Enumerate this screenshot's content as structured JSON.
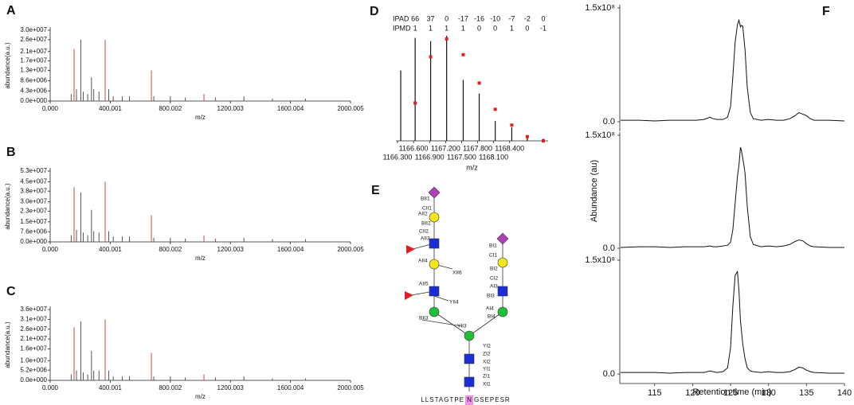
{
  "chart_data": [
    {
      "type": "spectrum",
      "panel_label": "A",
      "y_label": "abundance(a.u.)",
      "x_label": "m/z",
      "xlim": [
        0,
        2000.005
      ],
      "xticks": [
        {
          "value": 0,
          "label": "0.000"
        },
        {
          "value": 400.001,
          "label": "400.001"
        },
        {
          "value": 800.002,
          "label": "800.002"
        },
        {
          "value": 1200.003,
          "label": "1200.003"
        },
        {
          "value": 1600.004,
          "label": "1600.004"
        },
        {
          "value": 2000.005,
          "label": "2000.005"
        }
      ],
      "ylim": [
        0,
        30000000
      ],
      "yticks": [
        {
          "value": 0,
          "label": "0.0e+000"
        },
        {
          "value": 4300000,
          "label": "4.3e+006"
        },
        {
          "value": 8600000,
          "label": "8.6e+006"
        },
        {
          "value": 13000000,
          "label": "1.3e+007"
        },
        {
          "value": 17000000,
          "label": "1.7e+007"
        },
        {
          "value": 21000000,
          "label": "2.1e+007"
        },
        {
          "value": 26000000,
          "label": "2.6e+007"
        },
        {
          "value": 30000000,
          "label": "3.0e+007"
        }
      ],
      "x": [
        140,
        159,
        175,
        204,
        220,
        250,
        275,
        290,
        325,
        366,
        390,
        420,
        480,
        528,
        674,
        690,
        800,
        900,
        1024,
        1100,
        1290,
        1480,
        1700
      ],
      "values": [
        3000000,
        22000000,
        5000000,
        26000000,
        4000000,
        3000000,
        10000000,
        5000000,
        4000000,
        26000000,
        5000000,
        2000000,
        2000000,
        2000000,
        13000000,
        2000000,
        2000000,
        1500000,
        3000000,
        1500000,
        2000000,
        1000000,
        1000000
      ],
      "colors": [
        "#555",
        "#c84a4a",
        "#555",
        "#555",
        "#555",
        "#555",
        "#555",
        "#555",
        "#555",
        "#c84a4a",
        "#555",
        "#555",
        "#555",
        "#555",
        "#c84a4a",
        "#555",
        "#555",
        "#555",
        "#c84a4a",
        "#555",
        "#555",
        "#555",
        "#555"
      ]
    },
    {
      "type": "spectrum",
      "panel_label": "B",
      "y_label": "abundance(a.u.)",
      "x_label": "m/z",
      "xlim": [
        0,
        2000.005
      ],
      "xticks": [
        {
          "value": 0,
          "label": "0.000"
        },
        {
          "value": 400.001,
          "label": "400.001"
        },
        {
          "value": 800.002,
          "label": "800.002"
        },
        {
          "value": 1200.003,
          "label": "1200.003"
        },
        {
          "value": 1600.004,
          "label": "1600.004"
        },
        {
          "value": 2000.005,
          "label": "2000.005"
        }
      ],
      "ylim": [
        0,
        53000000
      ],
      "yticks": [
        {
          "value": 0,
          "label": "0.0e+000"
        },
        {
          "value": 7600000,
          "label": "7.6e+006"
        },
        {
          "value": 15000000,
          "label": "1.5e+007"
        },
        {
          "value": 23000000,
          "label": "2.3e+007"
        },
        {
          "value": 30000000,
          "label": "3.0e+007"
        },
        {
          "value": 38000000,
          "label": "3.8e+007"
        },
        {
          "value": 45000000,
          "label": "4.5e+007"
        },
        {
          "value": 53000000,
          "label": "5.3e+007"
        }
      ],
      "x": [
        140,
        159,
        175,
        204,
        220,
        250,
        275,
        290,
        325,
        366,
        390,
        420,
        480,
        528,
        674,
        690,
        800,
        900,
        1024,
        1100,
        1290,
        1480,
        1700
      ],
      "values": [
        5000000,
        41000000,
        9000000,
        37000000,
        7000000,
        5000000,
        24000000,
        8000000,
        7000000,
        45000000,
        8000000,
        4000000,
        4000000,
        4000000,
        20000000,
        3000000,
        3000000,
        2500000,
        5000000,
        2500000,
        3000000,
        2000000,
        2000000
      ],
      "colors": [
        "#555",
        "#c84a4a",
        "#555",
        "#555",
        "#555",
        "#555",
        "#555",
        "#555",
        "#555",
        "#c84a4a",
        "#555",
        "#555",
        "#555",
        "#555",
        "#c84a4a",
        "#555",
        "#555",
        "#555",
        "#c84a4a",
        "#555",
        "#555",
        "#555",
        "#555"
      ]
    },
    {
      "type": "spectrum",
      "panel_label": "C",
      "y_label": "abundance(a.u.)",
      "x_label": "m/z",
      "xlim": [
        0,
        2000.005
      ],
      "xticks": [
        {
          "value": 0,
          "label": "0.000"
        },
        {
          "value": 400.001,
          "label": "400.001"
        },
        {
          "value": 800.002,
          "label": "800.002"
        },
        {
          "value": 1200.003,
          "label": "1200.003"
        },
        {
          "value": 1600.004,
          "label": "1600.004"
        },
        {
          "value": 2000.005,
          "label": "2000.005"
        }
      ],
      "ylim": [
        0,
        36000000
      ],
      "yticks": [
        {
          "value": 0,
          "label": "0.0e+000"
        },
        {
          "value": 5200000,
          "label": "5.2e+006"
        },
        {
          "value": 10000000,
          "label": "1.0e+007"
        },
        {
          "value": 16000000,
          "label": "1.6e+007"
        },
        {
          "value": 21000000,
          "label": "2.1e+007"
        },
        {
          "value": 26000000,
          "label": "2.6e+007"
        },
        {
          "value": 31000000,
          "label": "3.1e+007"
        },
        {
          "value": 36000000,
          "label": "3.6e+007"
        }
      ],
      "x": [
        140,
        159,
        175,
        204,
        220,
        250,
        275,
        290,
        325,
        366,
        390,
        420,
        480,
        528,
        674,
        690,
        800,
        900,
        1024,
        1100,
        1290,
        1480,
        1700
      ],
      "values": [
        3000000,
        27000000,
        5000000,
        30000000,
        4000000,
        3000000,
        15000000,
        5000000,
        5000000,
        31000000,
        5000000,
        2000000,
        2000000,
        2000000,
        14000000,
        2000000,
        2000000,
        1500000,
        3000000,
        1500000,
        2000000,
        1000000,
        1000000
      ],
      "colors": [
        "#555",
        "#c84a4a",
        "#555",
        "#555",
        "#555",
        "#555",
        "#555",
        "#555",
        "#555",
        "#c84a4a",
        "#555",
        "#555",
        "#555",
        "#555",
        "#c84a4a",
        "#555",
        "#555",
        "#555",
        "#c84a4a",
        "#555",
        "#555",
        "#555",
        "#555"
      ]
    },
    {
      "type": "isotope",
      "panel_label": "D",
      "x_label": "m/z",
      "xlim": [
        1166.27,
        1169.12
      ],
      "xticks": [
        {
          "value": 1166.3,
          "label": "1166.300"
        },
        {
          "value": 1166.6,
          "label": "1166.600"
        },
        {
          "value": 1166.9,
          "label": "1166.900"
        },
        {
          "value": 1167.2,
          "label": "1167.200"
        },
        {
          "value": 1167.5,
          "label": "1167.500"
        },
        {
          "value": 1167.8,
          "label": "1167.800"
        },
        {
          "value": 1168.1,
          "label": "1168.100"
        },
        {
          "value": 1168.4,
          "label": "1168.400"
        }
      ],
      "x": [
        1166.36,
        1166.63,
        1166.92,
        1167.22,
        1167.53,
        1167.83,
        1168.13,
        1168.44,
        1168.73,
        1169.03
      ],
      "values": [
        67,
        98,
        95,
        100,
        58,
        45,
        19,
        13,
        5,
        2
      ],
      "theoretical_values": [
        null,
        36,
        80,
        97,
        82,
        55,
        30,
        15,
        4,
        0
      ],
      "color": "#111",
      "theoretical_color": "#e02020",
      "table": {
        "rows": [
          {
            "label": "IPAD",
            "values": [
              66,
              37,
              0,
              -17,
              -16,
              -10,
              -7,
              -2,
              0
            ]
          },
          {
            "label": "IPMD",
            "values": [
              1,
              1,
              1,
              1,
              0,
              0,
              1,
              0,
              -1
            ]
          }
        ]
      }
    },
    {
      "type": "line",
      "panel_label": "F",
      "color": "#111",
      "xlim": [
        110.4,
        140
      ],
      "ylim": [
        0,
        150000000
      ],
      "yticks": [
        {
          "value": 150000000,
          "label": "1.5x10⁸"
        },
        {
          "value": 0,
          "label": "0.0"
        }
      ],
      "x": [
        110.5,
        113,
        115,
        117,
        119,
        120.5,
        121.5,
        122.3,
        122.7,
        123.2,
        124,
        124.6,
        125,
        125.3,
        125.6,
        125.9,
        126.1,
        126.3,
        126.4,
        126.6,
        126.9,
        127.2,
        127.6,
        128,
        129,
        130,
        131,
        132,
        132.8,
        133.5,
        134,
        134.5,
        135,
        135.5,
        136,
        138,
        140
      ],
      "values": [
        2000000,
        2000000,
        1000000,
        2000000,
        2000000,
        2000000,
        3000000,
        6000000,
        4000000,
        3000000,
        3000000,
        6000000,
        20000000,
        60000000,
        105000000,
        128000000,
        134000000,
        125000000,
        127000000,
        126000000,
        95000000,
        45000000,
        12000000,
        4000000,
        2000000,
        3000000,
        2000000,
        2000000,
        4000000,
        8000000,
        12000000,
        10000000,
        8000000,
        4000000,
        2000000,
        2000000,
        1000000
      ]
    },
    {
      "type": "line",
      "y_label": "Abundance (au)",
      "color": "#111",
      "xlim": [
        110.4,
        140
      ],
      "ylim": [
        0,
        150000000
      ],
      "yticks": [
        {
          "value": 150000000,
          "label": "1.5x10⁸"
        },
        {
          "value": 0,
          "label": "0.0"
        }
      ],
      "x": [
        110.5,
        113,
        115,
        117,
        119,
        120.5,
        121.5,
        122.3,
        122.7,
        123.2,
        124,
        124.6,
        125,
        125.3,
        125.6,
        125.9,
        126.1,
        126.3,
        126.4,
        126.6,
        126.9,
        127.2,
        127.6,
        128,
        129,
        130,
        131,
        132,
        132.8,
        133.5,
        134,
        134.5,
        135,
        135.5,
        136,
        138,
        140
      ],
      "values": [
        1000000,
        2000000,
        2000000,
        1000000,
        2000000,
        2000000,
        2000000,
        3000000,
        2000000,
        2000000,
        3000000,
        4000000,
        8000000,
        25000000,
        60000000,
        95000000,
        110000000,
        134000000,
        131000000,
        120000000,
        100000000,
        55000000,
        15000000,
        5000000,
        2000000,
        3000000,
        2000000,
        3000000,
        5000000,
        9000000,
        11000000,
        10000000,
        6000000,
        3000000,
        2000000,
        1000000,
        1000000
      ]
    },
    {
      "type": "line",
      "x_label": "Retention time (min)",
      "color": "#111",
      "xlim": [
        110.4,
        140
      ],
      "ylim": [
        0,
        150000000
      ],
      "xticks": [
        115,
        120,
        125,
        130,
        135,
        140
      ],
      "yticks": [
        {
          "value": 150000000,
          "label": "1.5x10⁸"
        },
        {
          "value": 0,
          "label": "0.0"
        }
      ],
      "x": [
        110.5,
        113,
        115,
        117,
        119,
        120.5,
        121.5,
        122.3,
        122.7,
        123.2,
        124,
        124.6,
        125,
        125.3,
        125.6,
        125.9,
        126.1,
        126.3,
        126.4,
        126.6,
        126.9,
        127.2,
        127.6,
        128,
        129,
        130,
        131,
        132,
        132.8,
        133.5,
        134,
        134.5,
        135,
        135.5,
        136,
        138,
        140
      ],
      "values": [
        2000000,
        2000000,
        2000000,
        1000000,
        2000000,
        2000000,
        2000000,
        4000000,
        3000000,
        2000000,
        3000000,
        8000000,
        35000000,
        90000000,
        130000000,
        135000000,
        110000000,
        70000000,
        60000000,
        40000000,
        20000000,
        8000000,
        4000000,
        3000000,
        2000000,
        3000000,
        2000000,
        2000000,
        3000000,
        6000000,
        9000000,
        8000000,
        5000000,
        3000000,
        2000000,
        1000000,
        1000000
      ]
    }
  ],
  "glycan": {
    "panel_label": "E",
    "labels": [
      "BII1",
      "CII1",
      "AII2",
      "BII2",
      "CII2",
      "AII3",
      "AII4",
      "XII6",
      "AII5",
      "YII4",
      "BII3",
      "YII3",
      "BI1",
      "CI1",
      "BI2",
      "CI2",
      "AI3",
      "BI3",
      "AI4",
      "BI4",
      "YI2",
      "ZI2",
      "XI2",
      "YI1",
      "ZI1",
      "XI1"
    ],
    "peptide": {
      "before": "LLSTAGTPE",
      "site": "N",
      "after": "GSEPESR"
    }
  }
}
